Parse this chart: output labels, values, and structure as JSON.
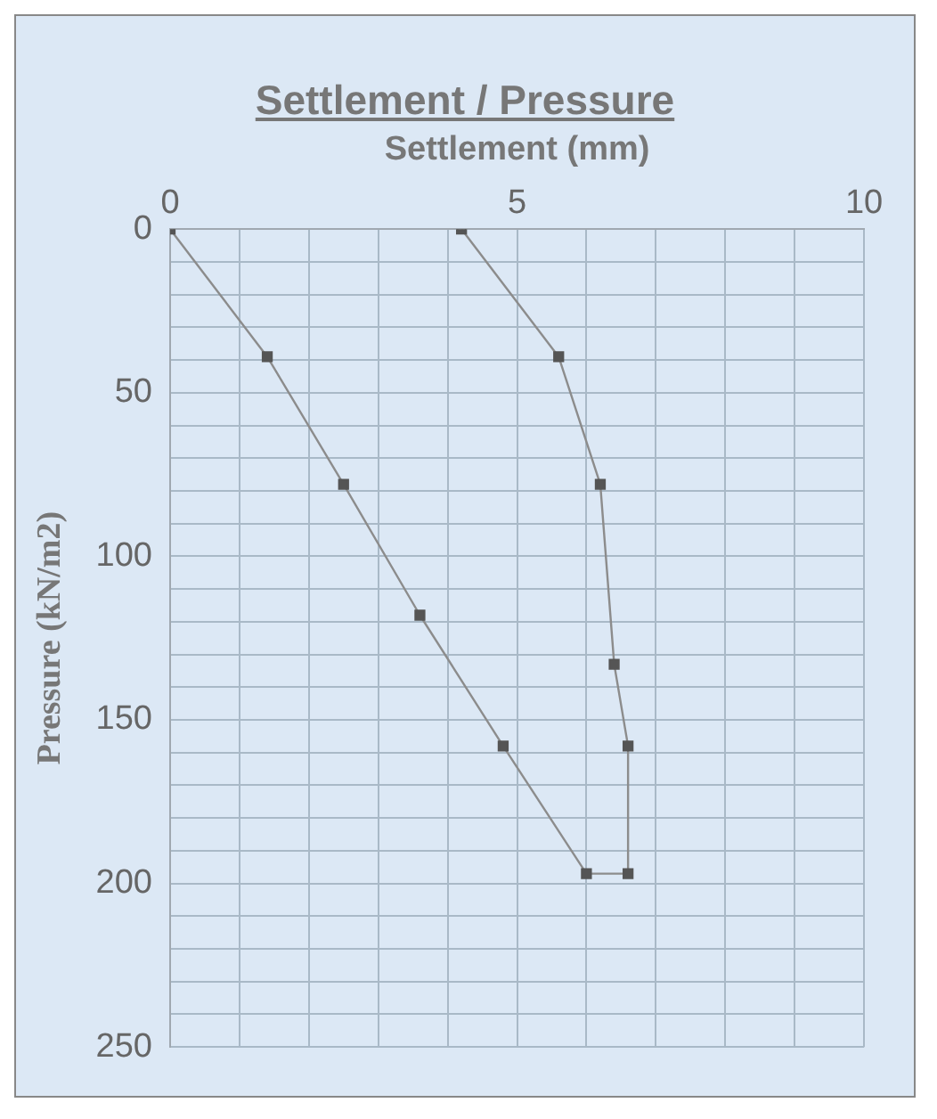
{
  "chart_data": {
    "type": "line",
    "title": "Settlement / Pressure",
    "xlabel": "Settlement (mm)",
    "ylabel": "Pressure (kN/m2)",
    "series": [
      {
        "color": "#8c8c8c",
        "x": [
          0,
          1.4,
          2.5,
          3.6,
          4.8,
          6.0,
          6.6,
          6.6,
          6.4,
          6.2,
          5.6,
          4.2
        ],
        "values": [
          0,
          39,
          78,
          118,
          158,
          197,
          197,
          158,
          133,
          78,
          39,
          0
        ]
      }
    ],
    "xlim": [
      0,
      10
    ],
    "xticks": [
      0,
      {
        "value": 1,
        "label": null
      },
      {
        "value": 2,
        "label": null
      },
      {
        "value": 3,
        "label": null
      },
      {
        "value": 4,
        "label": null
      },
      5,
      {
        "value": 6,
        "label": null
      },
      {
        "value": 7,
        "label": null
      },
      {
        "value": 8,
        "label": null
      },
      {
        "value": 9,
        "label": null
      },
      10
    ],
    "ylim": [
      250,
      0
    ],
    "yticks": [
      0,
      {
        "value": 10,
        "label": null
      },
      {
        "value": 20,
        "label": null
      },
      {
        "value": 30,
        "label": null
      },
      {
        "value": 40,
        "label": null
      },
      50,
      {
        "value": 60,
        "label": null
      },
      {
        "value": 70,
        "label": null
      },
      {
        "value": 80,
        "label": null
      },
      {
        "value": 90,
        "label": null
      },
      100,
      {
        "value": 110,
        "label": null
      },
      {
        "value": 120,
        "label": null
      },
      {
        "value": 130,
        "label": null
      },
      {
        "value": 140,
        "label": null
      },
      150,
      {
        "value": 160,
        "label": null
      },
      {
        "value": 170,
        "label": null
      },
      {
        "value": 180,
        "label": null
      },
      {
        "value": 190,
        "label": null
      },
      200,
      {
        "value": 210,
        "label": null
      },
      {
        "value": 220,
        "label": null
      },
      {
        "value": 230,
        "label": null
      },
      {
        "value": 240,
        "label": null
      },
      250
    ],
    "grid": true,
    "legend": false,
    "marker": "square",
    "line_style": "solid"
  }
}
